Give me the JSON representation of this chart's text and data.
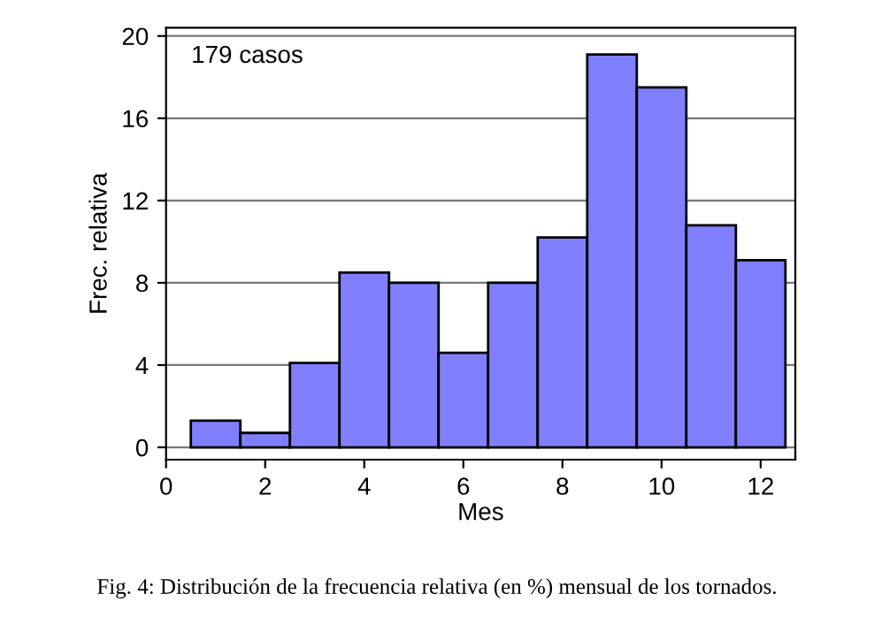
{
  "chart_data": {
    "type": "histogram",
    "bins": [
      0.5,
      1.5,
      2.5,
      3.5,
      4.5,
      5.5,
      6.5,
      7.5,
      8.5,
      9.5,
      10.5,
      11.5,
      12.5
    ],
    "values": [
      1.3,
      0.7,
      4.1,
      8.5,
      8.0,
      4.6,
      8.0,
      10.2,
      19.1,
      17.5,
      10.8,
      9.1
    ],
    "color": "#8080ff",
    "xlabel": "Mes",
    "ylabel": "Frec. relativa",
    "xlim": [
      0,
      12.7
    ],
    "xticks": [
      0,
      2,
      4,
      6,
      8,
      10,
      12
    ],
    "ylim": [
      -0.6,
      20.4
    ],
    "yticks": [
      0,
      4,
      8,
      12,
      16,
      20
    ],
    "grid": "y",
    "annotations": [
      "179 casos",
      "Fig. 4: Distribución de la frecuencia relativa (en %) mensual de los tornados."
    ]
  }
}
